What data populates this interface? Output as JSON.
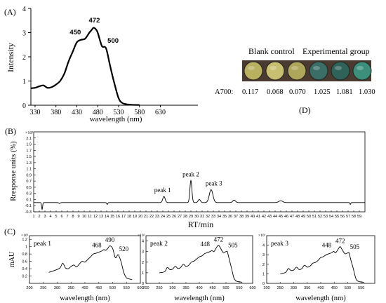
{
  "panels": {
    "A": "(A)",
    "B": "(B)",
    "C": "(C)",
    "D": "(D)"
  },
  "chart_data": [
    {
      "panel": "A",
      "type": "line",
      "xlabel": "wavelength (nm)",
      "ylabel": "Intensity",
      "xlim": [
        320,
        720
      ],
      "ylim": [
        0,
        4
      ],
      "xticks": [
        330,
        380,
        430,
        480,
        530,
        580,
        630
      ],
      "yticks": [
        0,
        1,
        2,
        3,
        4
      ],
      "annotations": [
        {
          "text": "450",
          "x": 450,
          "y": 2.75
        },
        {
          "text": "472",
          "x": 472,
          "y": 3.25
        },
        {
          "text": "500",
          "x": 500,
          "y": 2.4
        }
      ],
      "series": [
        {
          "x": [
            320,
            330,
            340,
            350,
            360,
            370,
            380,
            390,
            400,
            410,
            420,
            430,
            440,
            450,
            460,
            465,
            470,
            475,
            480,
            490,
            500,
            510,
            520,
            530,
            540,
            560,
            580
          ],
          "values": [
            0.7,
            0.72,
            0.78,
            0.82,
            0.72,
            0.75,
            0.85,
            1.0,
            1.3,
            1.8,
            2.2,
            2.6,
            2.7,
            2.75,
            3.0,
            3.1,
            3.2,
            3.15,
            3.0,
            2.45,
            2.35,
            1.6,
            0.9,
            0.3,
            0.08,
            0.02,
            0.01
          ]
        }
      ]
    },
    {
      "panel": "B",
      "type": "line",
      "xlabel": "RT/min",
      "ylabel": "Rresponse units (%)",
      "yunit": "×10²",
      "xlim": [
        1,
        60
      ],
      "ylim": [
        -0.3,
        2.3
      ],
      "yticks": [
        -0.3,
        -0.1,
        0.1,
        0.3,
        0.5,
        0.7,
        0.9,
        1.1,
        1.3,
        1.5,
        1.7,
        1.9,
        2.1
      ],
      "ytick_labels": [
        "-0.3",
        "-0.1",
        "0.1",
        "0.3",
        "0.5",
        "0.7",
        "0.9",
        "1.1",
        "1.3",
        "1.5",
        "1.7",
        "1.9",
        "2.1"
      ],
      "xticks": [
        1,
        2,
        3,
        4,
        5,
        6,
        7,
        8,
        9,
        10,
        11,
        12,
        13,
        14,
        15,
        16,
        17,
        18,
        19,
        20,
        21,
        22,
        23,
        24,
        25,
        26,
        27,
        28,
        29,
        30,
        31,
        32,
        33,
        34,
        35,
        36,
        37,
        38,
        39,
        40,
        41,
        42,
        43,
        44,
        45,
        46,
        47,
        48,
        49,
        50,
        51,
        52,
        53,
        54,
        55,
        56,
        57,
        58,
        59
      ],
      "baseline": 0.0,
      "peaks": [
        {
          "label": "peak 1",
          "rt": 24.2,
          "height": 0.2,
          "width": 0.3
        },
        {
          "label": "peak 2",
          "rt": 29.0,
          "height": 0.72,
          "width": 0.25
        },
        {
          "label": "peak 3",
          "rt": 32.6,
          "height": 0.42,
          "width": 0.45
        },
        {
          "label": "",
          "rt": 30.5,
          "height": 0.1,
          "width": 0.3
        },
        {
          "label": "",
          "rt": 36.7,
          "height": 0.08,
          "width": 0.35
        },
        {
          "label": "",
          "rt": 45.0,
          "height": 0.06,
          "width": 0.5
        },
        {
          "label": "",
          "rt": 2.5,
          "height": -0.22,
          "width": 0.12
        },
        {
          "label": "",
          "rt": 5.6,
          "height": -0.03,
          "width": 0.15
        },
        {
          "label": "",
          "rt": 14.1,
          "height": -0.06,
          "width": 0.12
        },
        {
          "label": "",
          "rt": 57.4,
          "height": -0.06,
          "width": 0.1
        }
      ]
    },
    {
      "panel": "C1",
      "type": "line",
      "label": "peak 1",
      "xlabel": "wavelength (nm)",
      "ylabel": "mAU",
      "yunit": "×10¹",
      "xlim": [
        200,
        600
      ],
      "ylim": [
        0,
        1.3
      ],
      "yticks": [
        0.2,
        0.4,
        0.6,
        0.8,
        1.0,
        1.2
      ],
      "ytick_labels": [
        "0.2",
        "0.4",
        "0.6",
        "0.8",
        "1",
        "1.2"
      ],
      "xticks": [
        200,
        250,
        300,
        350,
        400,
        450,
        500,
        550,
        600
      ],
      "annotations": [
        {
          "text": "468",
          "x": 468,
          "y": 0.93
        },
        {
          "text": "490",
          "x": 490,
          "y": 1.07
        },
        {
          "text": "520",
          "x": 520,
          "y": 0.82
        }
      ],
      "series": [
        {
          "x": [
            270,
            290,
            310,
            320,
            330,
            340,
            350,
            360,
            370,
            380,
            390,
            400,
            410,
            420,
            430,
            440,
            450,
            460,
            468,
            475,
            482,
            490,
            500,
            510,
            520,
            530,
            540,
            550,
            560,
            570
          ],
          "values": [
            0.3,
            0.35,
            0.42,
            0.55,
            0.42,
            0.4,
            0.46,
            0.5,
            0.45,
            0.53,
            0.6,
            0.58,
            0.65,
            0.72,
            0.8,
            0.82,
            0.85,
            0.88,
            0.92,
            0.9,
            0.95,
            1.02,
            0.95,
            0.7,
            0.78,
            0.6,
            0.3,
            0.15,
            0.12,
            0.1
          ]
        }
      ]
    },
    {
      "panel": "C2",
      "type": "line",
      "label": "peak 2",
      "xlabel": "wavelength (nm)",
      "yunit": "×10²",
      "xlim": [
        200,
        600
      ],
      "ylim": [
        0,
        4.5
      ],
      "yticks": [
        0,
        1,
        2,
        3,
        4
      ],
      "ytick_labels": [
        "0",
        "1",
        "2",
        "3",
        "4"
      ],
      "xticks": [
        200,
        250,
        300,
        350,
        400,
        450,
        500,
        550,
        600
      ],
      "annotations": [
        {
          "text": "448",
          "x": 448,
          "y": 3.3
        },
        {
          "text": "472",
          "x": 472,
          "y": 3.75
        },
        {
          "text": "505",
          "x": 505,
          "y": 3.2
        }
      ],
      "series": [
        {
          "x": [
            250,
            270,
            280,
            290,
            300,
            310,
            320,
            330,
            340,
            350,
            360,
            370,
            380,
            390,
            400,
            410,
            420,
            430,
            440,
            448,
            455,
            465,
            472,
            480,
            490,
            500,
            505,
            510,
            520,
            530,
            540,
            550,
            560
          ],
          "values": [
            1.0,
            1.1,
            1.5,
            1.3,
            1.35,
            1.6,
            1.4,
            1.5,
            1.8,
            1.6,
            1.7,
            2.0,
            2.1,
            2.3,
            2.5,
            2.6,
            2.8,
            2.9,
            3.0,
            3.1,
            3.0,
            3.4,
            3.6,
            3.3,
            2.9,
            3.0,
            3.0,
            2.5,
            1.5,
            0.5,
            0.2,
            0.15,
            0.1
          ]
        }
      ]
    },
    {
      "panel": "C3",
      "type": "line",
      "label": "peak 3",
      "xlabel": "wavelength (nm)",
      "yunit": "×10¹",
      "xlim": [
        200,
        600
      ],
      "ylim": [
        0,
        5
      ],
      "yticks": [
        0,
        1,
        2,
        3,
        4
      ],
      "ytick_labels": [
        "0",
        "1",
        "2",
        "3",
        "4"
      ],
      "xticks": [
        200,
        250,
        300,
        350,
        400,
        450,
        500,
        550
      ],
      "annotations": [
        {
          "text": "448",
          "x": 448,
          "y": 3.55
        },
        {
          "text": "472",
          "x": 472,
          "y": 4.0
        },
        {
          "text": "505",
          "x": 505,
          "y": 3.4
        }
      ],
      "series": [
        {
          "x": [
            250,
            270,
            280,
            290,
            300,
            310,
            320,
            330,
            340,
            350,
            360,
            370,
            380,
            390,
            400,
            410,
            420,
            430,
            440,
            448,
            455,
            465,
            472,
            480,
            490,
            500,
            505,
            510,
            520,
            530,
            540,
            550,
            560
          ],
          "values": [
            1.0,
            1.15,
            1.55,
            1.35,
            1.4,
            1.7,
            1.45,
            1.55,
            1.9,
            1.7,
            1.8,
            2.1,
            2.2,
            2.4,
            2.7,
            2.8,
            3.0,
            3.1,
            3.2,
            3.35,
            3.2,
            3.6,
            3.85,
            3.5,
            3.1,
            3.2,
            3.2,
            2.6,
            1.6,
            0.5,
            0.2,
            0.15,
            0.1
          ]
        }
      ]
    }
  ],
  "panel_D": {
    "header_left": "Blank control",
    "header_right": "Experimental group",
    "row_label": "A700:",
    "values": [
      "0.117",
      "0.068",
      "0.070",
      "1.025",
      "1.081",
      "1.030"
    ],
    "well_colors": [
      "#b9b060",
      "#c8c070",
      "#aea65a",
      "#3a6e66",
      "#2f6258",
      "#3c8f7a"
    ],
    "strip_color": "#4a3a30"
  }
}
